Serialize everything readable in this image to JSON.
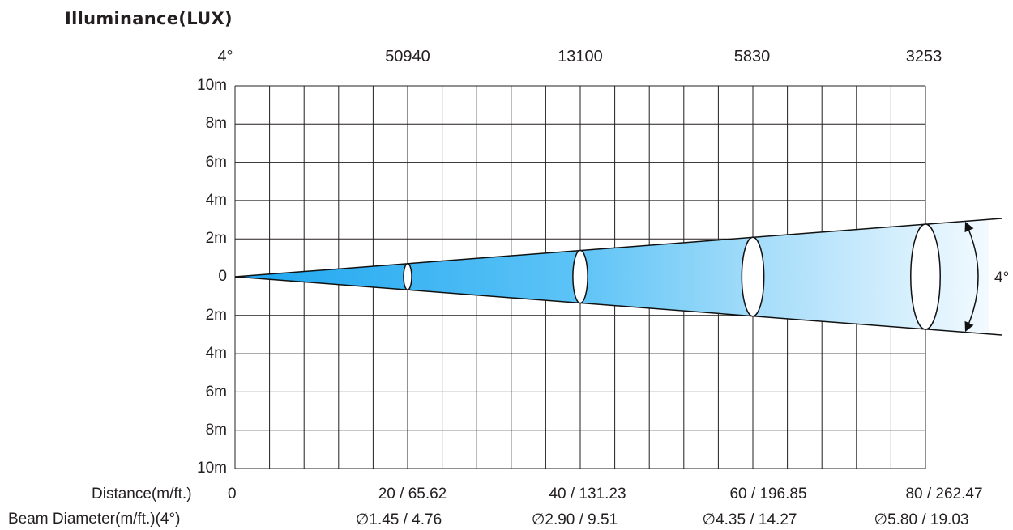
{
  "title": "Illuminance(LUX)",
  "beam_angle_top_label": "4°",
  "beam_angle_side_label": "4°",
  "illuminance_values": [
    "50940",
    "13100",
    "5830",
    "3253"
  ],
  "y_axis_labels": [
    "10m",
    "8m",
    "6m",
    "4m",
    "2m",
    "0",
    "2m",
    "4m",
    "6m",
    "8m",
    "10m"
  ],
  "distance_row": {
    "label": "Distance(m/ft.)",
    "start": "0",
    "values": [
      "20 / 65.62",
      "40 / 131.23",
      "60 / 196.85",
      "80 / 262.47"
    ]
  },
  "beam_diameter_row": {
    "label": "Beam Diameter(m/ft.)(4°)",
    "values": [
      "∅1.45 / 4.76",
      "∅2.90 / 9.51",
      "∅4.35 / 14.27",
      "∅5.80 / 19.03"
    ]
  },
  "colors": {
    "grid": "#231f20",
    "beam_start": "#1ea6f0",
    "beam_end": "#eaf7ff"
  }
}
